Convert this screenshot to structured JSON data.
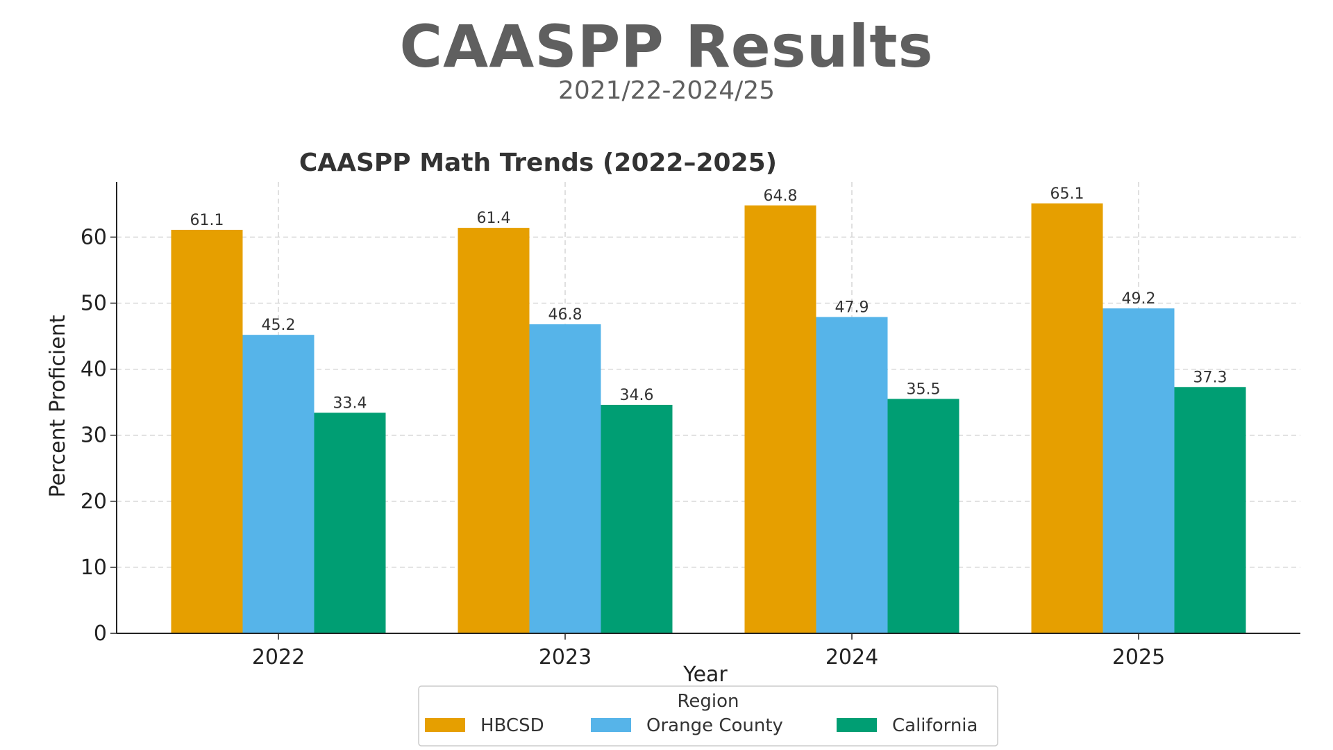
{
  "header": {
    "title": "CAASPP Results",
    "subtitle": "2021/22-2024/25"
  },
  "chart_data": {
    "type": "bar",
    "title": "CAASPP Math Trends (2022–2025)",
    "xlabel": "Year",
    "ylabel": "Percent Proficient",
    "categories": [
      "2022",
      "2023",
      "2024",
      "2025"
    ],
    "series": [
      {
        "name": "HBCSD",
        "color": "#E69F00",
        "values": [
          61.1,
          61.4,
          64.8,
          65.1
        ]
      },
      {
        "name": "Orange County",
        "color": "#56B4E9",
        "values": [
          45.2,
          46.8,
          47.9,
          49.2
        ]
      },
      {
        "name": "California",
        "color": "#009E73",
        "values": [
          33.4,
          34.6,
          35.5,
          37.3
        ]
      }
    ],
    "ylim": [
      0,
      68.35
    ],
    "yticks": [
      0,
      10,
      20,
      30,
      40,
      50,
      60
    ],
    "grid": true,
    "legend": {
      "title": "Region",
      "placement": "bottom-center"
    }
  }
}
